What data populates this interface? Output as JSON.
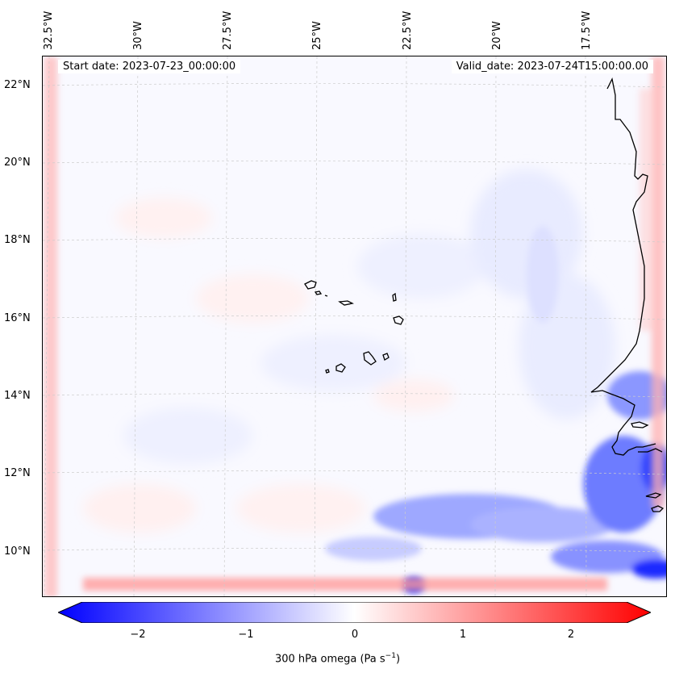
{
  "header": {
    "start_date": "Start date: 2023-07-23_00:00:00",
    "valid_date": "Valid_date: 2023-07-24T15:00:00.00"
  },
  "lon_labels": [
    "32.5°W",
    "30°W",
    "27.5°W",
    "25°W",
    "22.5°W",
    "20°W",
    "17.5°W"
  ],
  "lat_labels": [
    "22°N",
    "20°N",
    "18°N",
    "16°N",
    "14°N",
    "12°N",
    "10°N"
  ],
  "colorbar": {
    "ticks": [
      "−2",
      "−1",
      "0",
      "1",
      "2"
    ],
    "label_main": "300 hPa omega (Pa s",
    "label_sup": "−1",
    "label_end": ")",
    "min_color": "#0000ff",
    "mid_color": "#ffffff",
    "max_color": "#ff0000"
  },
  "map": {
    "field": "300 hPa omega",
    "coastline_color": "#000000",
    "gridline_color": "#cccccc"
  }
}
